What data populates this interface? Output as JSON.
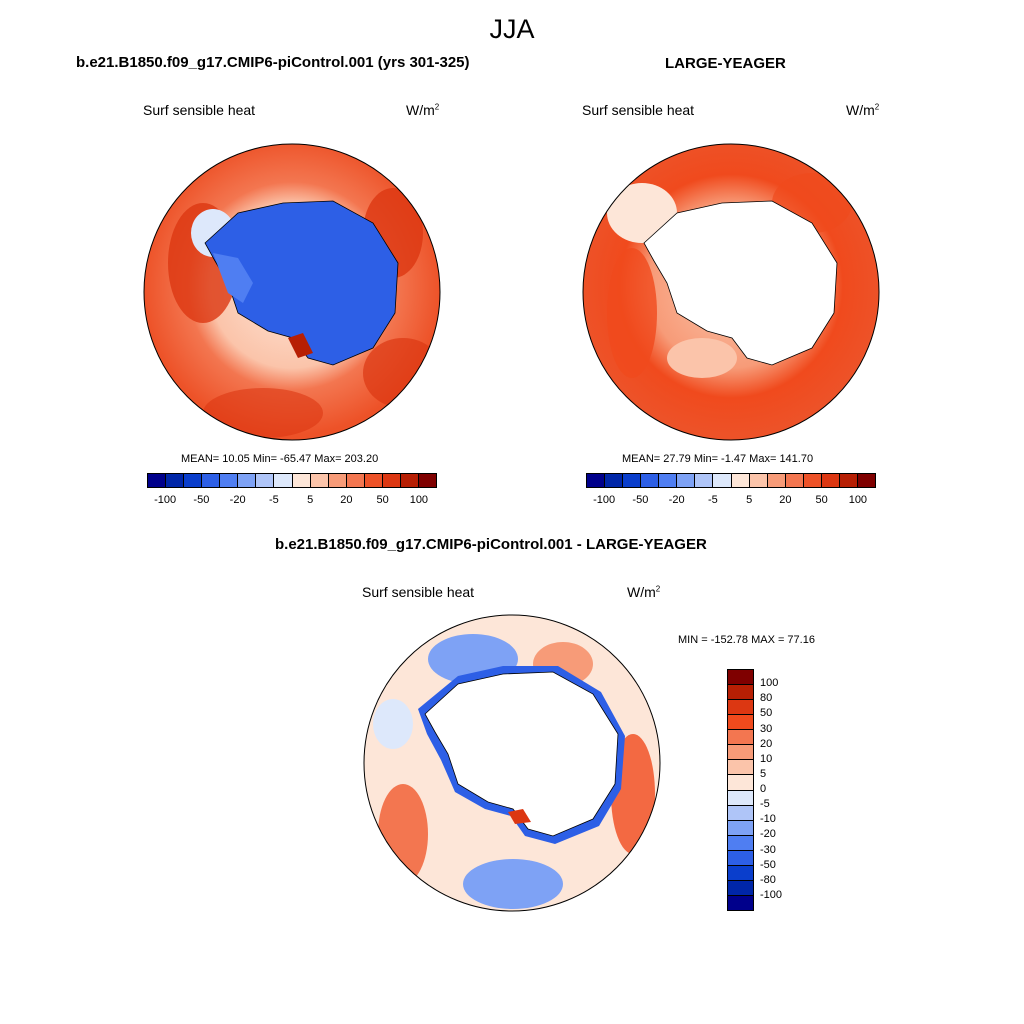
{
  "title": "JJA",
  "panels": [
    {
      "case": "b.e21.B1850.f09_g17.CMIP6-piControl.001 (yrs 301-325)",
      "variable": "Surf sensible heat",
      "units": "W/m",
      "units_sup": "2",
      "stats": "MEAN=  10.05  Min= -65.47  Max= 203.20"
    },
    {
      "case": "LARGE-YEAGER",
      "variable": "Surf sensible heat",
      "units": "W/m",
      "units_sup": "2",
      "stats": "MEAN=  27.79  Min=  -1.47  Max= 141.70"
    },
    {
      "case": "b.e21.B1850.f09_g17.CMIP6-piControl.001 - LARGE-YEAGER",
      "variable": "Surf sensible heat",
      "units": "W/m",
      "units_sup": "2",
      "stats": "MIN = -152.78 MAX =  77.16"
    }
  ],
  "colorbar_field": {
    "colors": [
      "#00008b",
      "#0026a8",
      "#0a3ecc",
      "#2d5fe6",
      "#4f7ef2",
      "#7ea2f5",
      "#afc5f8",
      "#dde8fb",
      "#fde6d8",
      "#fbc4aa",
      "#f79b78",
      "#f37650",
      "#ed5228",
      "#dc3712",
      "#b71f04",
      "#7f0000"
    ],
    "labels": [
      "-100",
      "-50",
      "-20",
      "-5",
      "5",
      "20",
      "50",
      "100"
    ]
  },
  "colorbar_diff": {
    "colors": [
      "#7f0000",
      "#b71f04",
      "#dc3712",
      "#f04a1d",
      "#f37650",
      "#f79b78",
      "#fbc4aa",
      "#fde6d8",
      "#dde8fb",
      "#afc5f8",
      "#7ea2f5",
      "#4f7ef2",
      "#2d5fe6",
      "#0a3ecc",
      "#0026a8",
      "#00008b"
    ],
    "labels": [
      "100",
      "80",
      "50",
      "30",
      "20",
      "10",
      "5",
      "0",
      "-5",
      "-10",
      "-20",
      "-30",
      "-50",
      "-80",
      "-100"
    ]
  }
}
